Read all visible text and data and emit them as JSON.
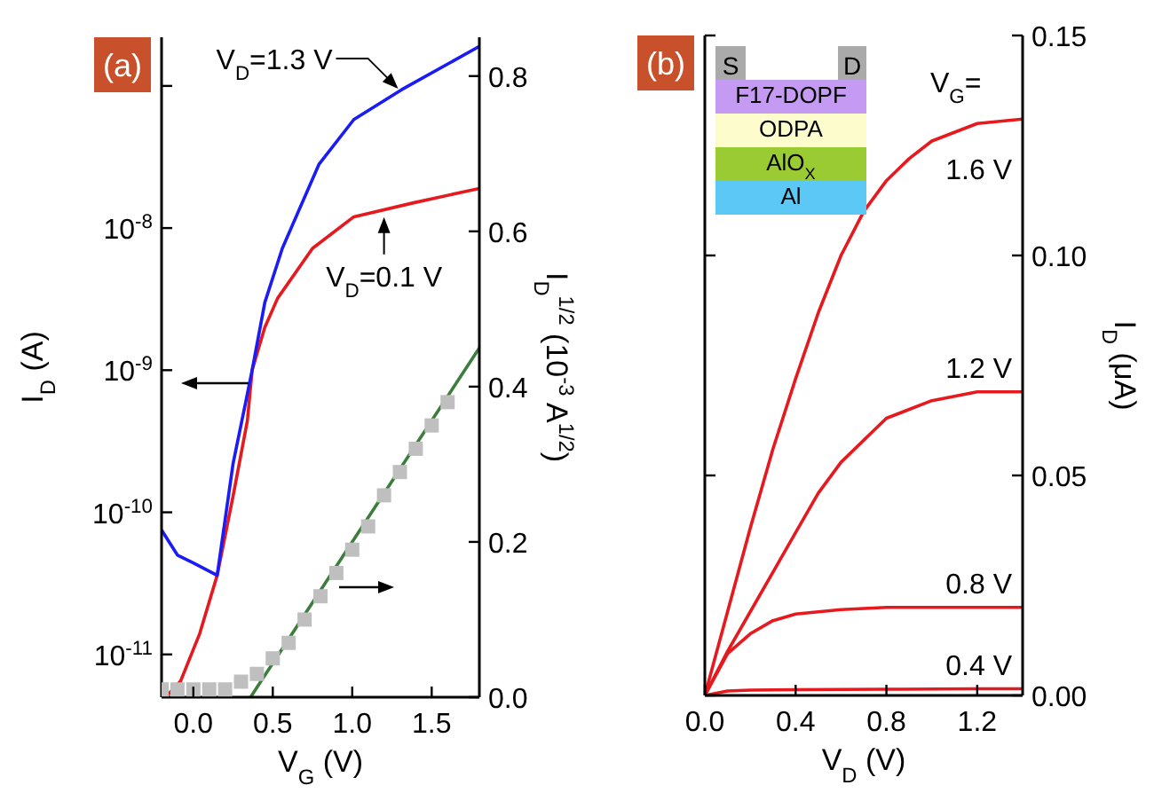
{
  "chart_data": [
    {
      "type": "line",
      "title": "(a)",
      "xlabel": "V$_{G}$ (V)",
      "ylabel": "I$_{D}$ (A)",
      "y2label": "I$_{D}$$^{1/2}$ (10$^{-3}$ A$^{1/2}$)",
      "log": "y",
      "xlim": [
        -0.2,
        1.8
      ],
      "xticks": [
        {
          "value": 0,
          "label": "0.0"
        },
        {
          "value": 0.5,
          "label": "0.5"
        },
        {
          "value": 1,
          "label": "1.0"
        },
        {
          "value": 1.5,
          "label": "1.5"
        }
      ],
      "ylim": [
        5e-12,
        2.2e-07
      ],
      "yticks": [
        {
          "value": 1e-11,
          "label": "10$^{-11}$"
        },
        {
          "value": 1e-10,
          "label": "10$^{-10}$"
        },
        {
          "value": 1e-09,
          "label": "10$^{-9}$"
        },
        {
          "value": 1e-08,
          "label": "10$^{-8}$"
        },
        {
          "value": 1e-07,
          "label": null
        }
      ],
      "y2lim": [
        0,
        0.85
      ],
      "y2ticks": [
        {
          "value": 0,
          "label": "0.0"
        },
        {
          "value": 0.2,
          "label": "0.2"
        },
        {
          "value": 0.4,
          "label": "0.4"
        },
        {
          "value": 0.6,
          "label": "0.6"
        },
        {
          "value": 0.8,
          "label": "0.8"
        }
      ],
      "annotations": [
        {
          "text": "V$_{D}$=1.3 V",
          "x": 1.3,
          "y": 9.3e-08
        },
        {
          "text": "V$_{D}$=0.1 V",
          "x": 1.2,
          "y": 1.3e-08
        }
      ],
      "series": [
        {
          "color": "#e5191e",
          "x": [
            -0.16,
            -0.08,
            0.04,
            0.15,
            0.25,
            0.34,
            0.37,
            0.45,
            0.53,
            0.75,
            1.01,
            1.38,
            1.8
          ],
          "values": [
            5.2e-12,
            6.5e-12,
            1.4e-11,
            3.6e-11,
            1.3e-10,
            4.4e-10,
            1e-09,
            2e-09,
            3.2e-09,
            7.2e-09,
            1.2e-08,
            1.5e-08,
            1.9e-08
          ]
        },
        {
          "color": "#1b1bf5",
          "x": [
            -0.2,
            -0.1,
            0.0,
            0.15,
            0.25,
            0.33,
            0.37,
            0.45,
            0.56,
            0.79,
            1.01,
            1.31,
            1.8
          ],
          "values": [
            7.5e-11,
            5e-11,
            4.4e-11,
            3.6e-11,
            2.2e-10,
            6e-10,
            1e-09,
            3e-09,
            7.2e-09,
            2.8e-08,
            5.8e-08,
            9.4e-08,
            1.9e-07
          ]
        },
        {
          "type": "scatter",
          "axis": "y2",
          "marker": "square",
          "color": "#bfbfbf",
          "x": [
            -0.2,
            -0.1,
            0.0,
            0.1,
            0.2,
            0.3,
            0.4,
            0.5,
            0.6,
            0.7,
            0.8,
            0.9,
            1.0,
            1.1,
            1.2,
            1.3,
            1.4,
            1.5,
            1.6
          ],
          "values": [
            0.01,
            0.01,
            0.01,
            0.01,
            0.01,
            0.02,
            0.03,
            0.05,
            0.07,
            0.1,
            0.13,
            0.16,
            0.19,
            0.22,
            0.26,
            0.29,
            0.32,
            0.35,
            0.38
          ]
        },
        {
          "type": "line",
          "axis": "y2",
          "color": "#3c7d3c",
          "x": [
            0.36,
            1.8
          ],
          "values": [
            0,
            0.45
          ]
        }
      ]
    },
    {
      "type": "line",
      "title": "(b)",
      "xlabel": "V$_{D}$ (V)",
      "y2label": "I$_{D}$ (μA)",
      "xlim": [
        0,
        1.4
      ],
      "xticks": [
        {
          "value": 0,
          "label": "0.0"
        },
        {
          "value": 0.4,
          "label": "0.4"
        },
        {
          "value": 0.8,
          "label": "0.8"
        },
        {
          "value": 1.2,
          "label": "1.2"
        }
      ],
      "y2lim": [
        0,
        0.15
      ],
      "y2ticks": [
        {
          "value": 0,
          "label": "0.00"
        },
        {
          "value": 0.05,
          "label": "0.05"
        },
        {
          "value": 0.1,
          "label": "0.10"
        },
        {
          "value": 0.15,
          "label": "0.15"
        }
      ],
      "annotations": [
        "V$_{G}$=",
        "S",
        "D",
        "F17-DOPF",
        "ODPA",
        "AlO$_{X}$",
        "Al"
      ],
      "series": [
        {
          "name": "1.6 V",
          "axis": "y2",
          "color": "#e5191e",
          "x": [
            0,
            0.1,
            0.2,
            0.3,
            0.4,
            0.5,
            0.6,
            0.7,
            0.8,
            0.9,
            1.0,
            1.2,
            1.4
          ],
          "values": [
            0,
            0.019,
            0.038,
            0.056,
            0.072,
            0.087,
            0.1,
            0.11,
            0.117,
            0.122,
            0.126,
            0.13,
            0.131
          ]
        },
        {
          "name": "1.2 V",
          "axis": "y2",
          "color": "#e5191e",
          "x": [
            0,
            0.1,
            0.2,
            0.3,
            0.4,
            0.5,
            0.6,
            0.8,
            1.0,
            1.2,
            1.4
          ],
          "values": [
            0,
            0.01,
            0.019,
            0.028,
            0.037,
            0.046,
            0.053,
            0.063,
            0.067,
            0.069,
            0.069
          ]
        },
        {
          "name": "0.8 V",
          "axis": "y2",
          "color": "#e5191e",
          "x": [
            0,
            0.1,
            0.2,
            0.3,
            0.4,
            0.5,
            0.6,
            0.8,
            1.0,
            1.4
          ],
          "values": [
            0,
            0.0095,
            0.014,
            0.017,
            0.0185,
            0.019,
            0.0195,
            0.02,
            0.02,
            0.02
          ]
        },
        {
          "name": "0.4 V",
          "axis": "y2",
          "color": "#e5191e",
          "x": [
            0,
            0.1,
            0.2,
            0.4,
            0.8,
            1.2,
            1.4
          ],
          "values": [
            0,
            0.001,
            0.0012,
            0.0013,
            0.0014,
            0.0015,
            0.0015
          ]
        }
      ]
    }
  ]
}
